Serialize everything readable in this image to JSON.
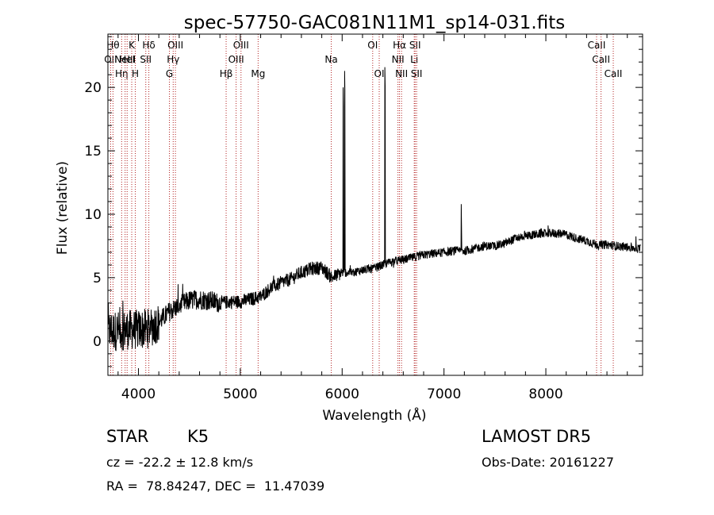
{
  "chart_data": {
    "type": "line",
    "title": "spec-57750-GAC081N11M1_sp14-031.fits",
    "xlabel": "Wavelength (Å)",
    "ylabel": "Flux (relative)",
    "xlim": [
      3700,
      8950
    ],
    "ylim": [
      -2.7,
      24.2
    ],
    "xticks": [
      4000,
      5000,
      6000,
      7000,
      8000
    ],
    "yticks": [
      0,
      5,
      10,
      15,
      20
    ],
    "grid": false,
    "line_color": "#000000",
    "marker_color": "#b22222",
    "spectrum_anchor_points": {
      "wavelength": [
        3700,
        3800,
        3900,
        4000,
        4100,
        4200,
        4300,
        4400,
        4500,
        4600,
        4700,
        4800,
        4900,
        5000,
        5100,
        5200,
        5300,
        5400,
        5500,
        5600,
        5700,
        5800,
        5900,
        6000,
        6100,
        6200,
        6300,
        6400,
        6500,
        6600,
        6700,
        6800,
        6900,
        7000,
        7100,
        7200,
        7300,
        7400,
        7500,
        7600,
        7700,
        7800,
        7900,
        8000,
        8100,
        8200,
        8300,
        8400,
        8500,
        8600,
        8700,
        8800,
        8900
      ],
      "flux": [
        0.8,
        0.8,
        0.9,
        0.9,
        1.0,
        1.5,
        2.3,
        2.8,
        3.2,
        3.3,
        3.2,
        3.0,
        3.1,
        3.1,
        3.3,
        3.5,
        4.2,
        4.6,
        4.9,
        5.4,
        5.7,
        5.8,
        5.0,
        5.4,
        5.4,
        5.6,
        5.7,
        6.0,
        6.3,
        6.4,
        6.6,
        6.8,
        6.9,
        7.0,
        7.1,
        7.1,
        7.3,
        7.5,
        7.5,
        7.7,
        8.1,
        8.3,
        8.4,
        8.5,
        8.5,
        8.4,
        8.1,
        7.9,
        7.6,
        7.6,
        7.5,
        7.4,
        7.3
      ]
    },
    "emission_spikes": [
      {
        "wavelength": 6010,
        "peak": 20.5
      },
      {
        "wavelength": 6025,
        "peak": 21.8
      },
      {
        "wavelength": 6420,
        "peak": 22.1
      },
      {
        "wavelength": 7170,
        "peak": 11.3
      }
    ],
    "line_markers": [
      {
        "wavelength": 3727,
        "row": 1,
        "label": "OII"
      },
      {
        "wavelength": 3750,
        "row": 0,
        "label": "Hθ"
      },
      {
        "wavelength": 3835,
        "row": 2,
        "label": "Hη"
      },
      {
        "wavelength": 3869,
        "row": 1,
        "label": "NeIII"
      },
      {
        "wavelength": 3889,
        "row": 1,
        "label": "HeI"
      },
      {
        "wavelength": 3934,
        "row": 0,
        "label": "K"
      },
      {
        "wavelength": 3969,
        "row": 2,
        "label": "H"
      },
      {
        "wavelength": 4102,
        "row": 0,
        "label": "Hδ"
      },
      {
        "wavelength": 4072,
        "row": 1,
        "label": "SII"
      },
      {
        "wavelength": 4304,
        "row": 2,
        "label": "G"
      },
      {
        "wavelength": 4341,
        "row": 1,
        "label": "Hγ"
      },
      {
        "wavelength": 4363,
        "row": 0,
        "label": "OIII"
      },
      {
        "wavelength": 4861,
        "row": 2,
        "label": "Hβ"
      },
      {
        "wavelength": 4959,
        "row": 1,
        "label": "OIII"
      },
      {
        "wavelength": 5007,
        "row": 0,
        "label": "OIII"
      },
      {
        "wavelength": 5175,
        "row": 2,
        "label": "Mg"
      },
      {
        "wavelength": 5893,
        "row": 1,
        "label": "Na"
      },
      {
        "wavelength": 6300,
        "row": 0,
        "label": "OI"
      },
      {
        "wavelength": 6364,
        "row": 2,
        "label": "OI"
      },
      {
        "wavelength": 6548,
        "row": 1,
        "label": "NII"
      },
      {
        "wavelength": 6563,
        "row": 0,
        "label": "Hα"
      },
      {
        "wavelength": 6583,
        "row": 2,
        "label": "NII"
      },
      {
        "wavelength": 6708,
        "row": 1,
        "label": "Li"
      },
      {
        "wavelength": 6716,
        "row": 0,
        "label": "SII"
      },
      {
        "wavelength": 6731,
        "row": 2,
        "label": "SII"
      },
      {
        "wavelength": 8498,
        "row": 0,
        "label": "CaII"
      },
      {
        "wavelength": 8542,
        "row": 1,
        "label": "CaII"
      },
      {
        "wavelength": 8662,
        "row": 2,
        "label": "CaII"
      }
    ]
  },
  "info": {
    "obj_class": "STAR",
    "obj_subclass": "K5",
    "survey": "LAMOST DR5",
    "cz": "cz = -22.2 ± 12.8 km/s",
    "obs_date": "Obs-Date: 20161227",
    "radec": "RA =  78.84247, DEC =  11.47039"
  }
}
